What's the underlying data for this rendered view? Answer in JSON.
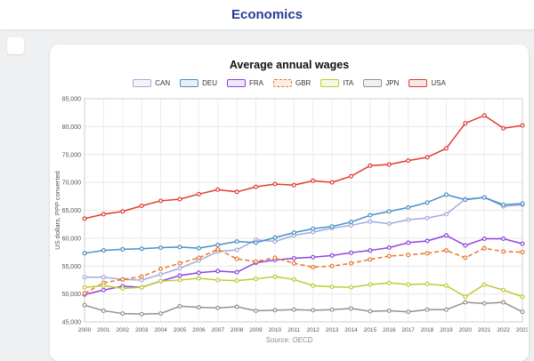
{
  "header": {
    "title": "Economics"
  },
  "chart": {
    "title": "Average annual wages",
    "ylabel": "US dollars, PPP converted",
    "source": "Source: OECD"
  },
  "chart_data": {
    "type": "line",
    "title": "Average annual wages",
    "xlabel": "",
    "ylabel": "US dollars, PPP converted",
    "source": "Source: OECD",
    "grid": true,
    "legend_position": "top",
    "ylim": [
      45000,
      85000
    ],
    "ytick_step": 5000,
    "x": [
      2000,
      2001,
      2002,
      2003,
      2004,
      2005,
      2006,
      2007,
      2008,
      2009,
      2010,
      2011,
      2012,
      2013,
      2014,
      2015,
      2016,
      2017,
      2018,
      2019,
      2020,
      2021,
      2022,
      2023
    ],
    "series": [
      {
        "name": "CAN",
        "color": "#a2aadd",
        "dashed": false,
        "values": [
          53000,
          53000,
          52600,
          52500,
          53500,
          54600,
          56000,
          57600,
          57900,
          59700,
          59400,
          60500,
          61100,
          61800,
          62300,
          63000,
          62600,
          63300,
          63600,
          64300,
          67000,
          67300,
          65700,
          66000
        ]
      },
      {
        "name": "DEU",
        "color": "#4a90c4",
        "dashed": false,
        "values": [
          57300,
          57800,
          58000,
          58100,
          58300,
          58400,
          58200,
          58800,
          59400,
          59200,
          60100,
          61000,
          61700,
          62100,
          62900,
          64100,
          64800,
          65500,
          66400,
          67800,
          66900,
          67300,
          66000,
          66200
        ]
      },
      {
        "name": "FRA",
        "color": "#8e44dd",
        "dashed": false,
        "values": [
          49900,
          50700,
          51400,
          51200,
          52300,
          53300,
          53800,
          54100,
          53900,
          55600,
          56100,
          56400,
          56600,
          56900,
          57400,
          57800,
          58300,
          59200,
          59500,
          60500,
          58700,
          59900,
          59900,
          59000
        ]
      },
      {
        "name": "GBR",
        "color": "#e8762c",
        "dashed": true,
        "values": [
          50100,
          52000,
          52600,
          53100,
          54500,
          55500,
          56500,
          58000,
          56300,
          55800,
          56500,
          55500,
          54800,
          55000,
          55500,
          56200,
          56800,
          57000,
          57300,
          57800,
          56500,
          58200,
          57600,
          57500
        ]
      },
      {
        "name": "ITA",
        "color": "#c0ca33",
        "dashed": false,
        "values": [
          51200,
          51500,
          51000,
          51200,
          52300,
          52500,
          52800,
          52500,
          52400,
          52700,
          53100,
          52600,
          51500,
          51300,
          51200,
          51700,
          52000,
          51700,
          51800,
          51500,
          49500,
          51700,
          50700,
          49500
        ]
      },
      {
        "name": "JPN",
        "color": "#9c9088",
        "dashed": false,
        "values": [
          48000,
          47000,
          46500,
          46400,
          46500,
          47800,
          47600,
          47500,
          47700,
          47000,
          47100,
          47200,
          47100,
          47200,
          47400,
          46900,
          47000,
          46800,
          47200,
          47200,
          48500,
          48300,
          48500,
          46800
        ]
      },
      {
        "name": "USA",
        "color": "#e03c31",
        "dashed": false,
        "values": [
          63500,
          64300,
          64800,
          65800,
          66700,
          67000,
          67900,
          68700,
          68300,
          69200,
          69700,
          69500,
          70300,
          70000,
          71100,
          73000,
          73200,
          73900,
          74500,
          76100,
          80600,
          82000,
          79700,
          80200
        ]
      }
    ]
  }
}
